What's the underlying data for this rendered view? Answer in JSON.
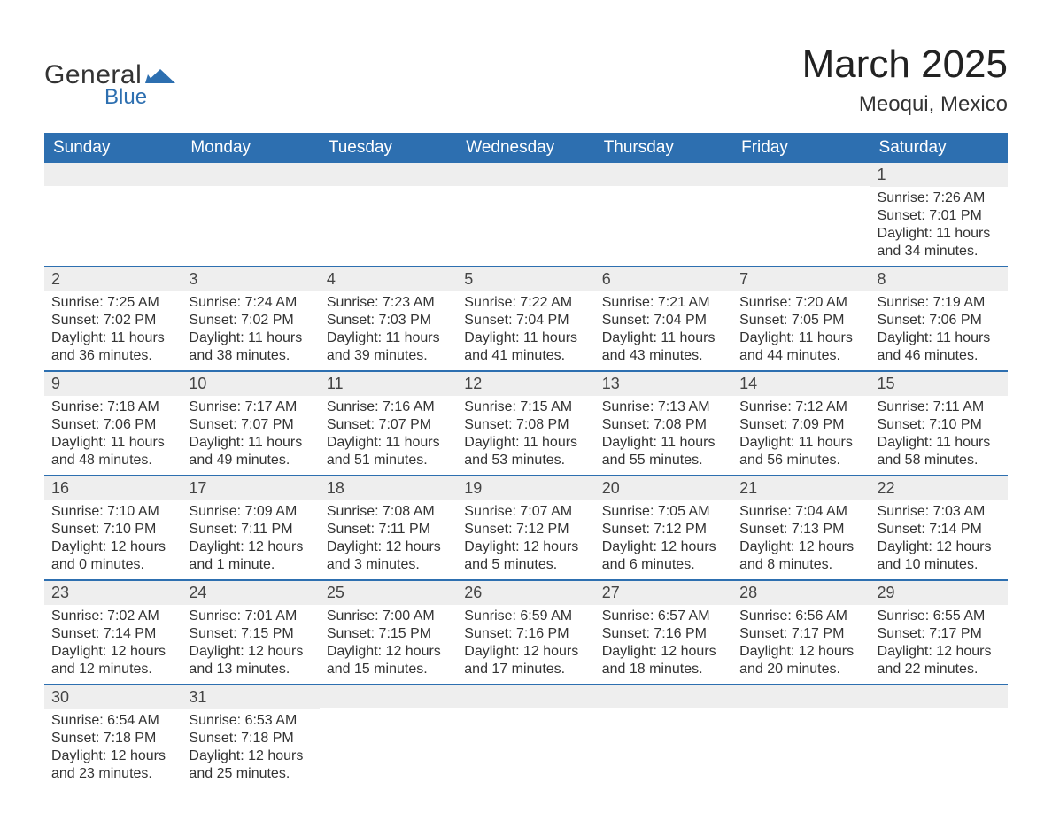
{
  "brand": {
    "text1": "General",
    "text2": "Blue",
    "text1_color": "#333333",
    "text2_color": "#2d6fb0",
    "mark_color": "#2d6fb0"
  },
  "title": "March 2025",
  "location": "Meoqui, Mexico",
  "colors": {
    "header_bg": "#2d6fb0",
    "header_text": "#ffffff",
    "row_border": "#2d6fb0",
    "daynum_bg": "#eeeeee",
    "body_text": "#333333",
    "background": "#ffffff"
  },
  "typography": {
    "title_fontsize": 44,
    "location_fontsize": 24,
    "th_fontsize": 19,
    "daynum_fontsize": 18,
    "body_fontsize": 16
  },
  "weekdays": [
    "Sunday",
    "Monday",
    "Tuesday",
    "Wednesday",
    "Thursday",
    "Friday",
    "Saturday"
  ],
  "weeks": [
    [
      null,
      null,
      null,
      null,
      null,
      null,
      {
        "n": "1",
        "sunrise": "Sunrise: 7:26 AM",
        "sunset": "Sunset: 7:01 PM",
        "daylight": "Daylight: 11 hours and 34 minutes."
      }
    ],
    [
      {
        "n": "2",
        "sunrise": "Sunrise: 7:25 AM",
        "sunset": "Sunset: 7:02 PM",
        "daylight": "Daylight: 11 hours and 36 minutes."
      },
      {
        "n": "3",
        "sunrise": "Sunrise: 7:24 AM",
        "sunset": "Sunset: 7:02 PM",
        "daylight": "Daylight: 11 hours and 38 minutes."
      },
      {
        "n": "4",
        "sunrise": "Sunrise: 7:23 AM",
        "sunset": "Sunset: 7:03 PM",
        "daylight": "Daylight: 11 hours and 39 minutes."
      },
      {
        "n": "5",
        "sunrise": "Sunrise: 7:22 AM",
        "sunset": "Sunset: 7:04 PM",
        "daylight": "Daylight: 11 hours and 41 minutes."
      },
      {
        "n": "6",
        "sunrise": "Sunrise: 7:21 AM",
        "sunset": "Sunset: 7:04 PM",
        "daylight": "Daylight: 11 hours and 43 minutes."
      },
      {
        "n": "7",
        "sunrise": "Sunrise: 7:20 AM",
        "sunset": "Sunset: 7:05 PM",
        "daylight": "Daylight: 11 hours and 44 minutes."
      },
      {
        "n": "8",
        "sunrise": "Sunrise: 7:19 AM",
        "sunset": "Sunset: 7:06 PM",
        "daylight": "Daylight: 11 hours and 46 minutes."
      }
    ],
    [
      {
        "n": "9",
        "sunrise": "Sunrise: 7:18 AM",
        "sunset": "Sunset: 7:06 PM",
        "daylight": "Daylight: 11 hours and 48 minutes."
      },
      {
        "n": "10",
        "sunrise": "Sunrise: 7:17 AM",
        "sunset": "Sunset: 7:07 PM",
        "daylight": "Daylight: 11 hours and 49 minutes."
      },
      {
        "n": "11",
        "sunrise": "Sunrise: 7:16 AM",
        "sunset": "Sunset: 7:07 PM",
        "daylight": "Daylight: 11 hours and 51 minutes."
      },
      {
        "n": "12",
        "sunrise": "Sunrise: 7:15 AM",
        "sunset": "Sunset: 7:08 PM",
        "daylight": "Daylight: 11 hours and 53 minutes."
      },
      {
        "n": "13",
        "sunrise": "Sunrise: 7:13 AM",
        "sunset": "Sunset: 7:08 PM",
        "daylight": "Daylight: 11 hours and 55 minutes."
      },
      {
        "n": "14",
        "sunrise": "Sunrise: 7:12 AM",
        "sunset": "Sunset: 7:09 PM",
        "daylight": "Daylight: 11 hours and 56 minutes."
      },
      {
        "n": "15",
        "sunrise": "Sunrise: 7:11 AM",
        "sunset": "Sunset: 7:10 PM",
        "daylight": "Daylight: 11 hours and 58 minutes."
      }
    ],
    [
      {
        "n": "16",
        "sunrise": "Sunrise: 7:10 AM",
        "sunset": "Sunset: 7:10 PM",
        "daylight": "Daylight: 12 hours and 0 minutes."
      },
      {
        "n": "17",
        "sunrise": "Sunrise: 7:09 AM",
        "sunset": "Sunset: 7:11 PM",
        "daylight": "Daylight: 12 hours and 1 minute."
      },
      {
        "n": "18",
        "sunrise": "Sunrise: 7:08 AM",
        "sunset": "Sunset: 7:11 PM",
        "daylight": "Daylight: 12 hours and 3 minutes."
      },
      {
        "n": "19",
        "sunrise": "Sunrise: 7:07 AM",
        "sunset": "Sunset: 7:12 PM",
        "daylight": "Daylight: 12 hours and 5 minutes."
      },
      {
        "n": "20",
        "sunrise": "Sunrise: 7:05 AM",
        "sunset": "Sunset: 7:12 PM",
        "daylight": "Daylight: 12 hours and 6 minutes."
      },
      {
        "n": "21",
        "sunrise": "Sunrise: 7:04 AM",
        "sunset": "Sunset: 7:13 PM",
        "daylight": "Daylight: 12 hours and 8 minutes."
      },
      {
        "n": "22",
        "sunrise": "Sunrise: 7:03 AM",
        "sunset": "Sunset: 7:14 PM",
        "daylight": "Daylight: 12 hours and 10 minutes."
      }
    ],
    [
      {
        "n": "23",
        "sunrise": "Sunrise: 7:02 AM",
        "sunset": "Sunset: 7:14 PM",
        "daylight": "Daylight: 12 hours and 12 minutes."
      },
      {
        "n": "24",
        "sunrise": "Sunrise: 7:01 AM",
        "sunset": "Sunset: 7:15 PM",
        "daylight": "Daylight: 12 hours and 13 minutes."
      },
      {
        "n": "25",
        "sunrise": "Sunrise: 7:00 AM",
        "sunset": "Sunset: 7:15 PM",
        "daylight": "Daylight: 12 hours and 15 minutes."
      },
      {
        "n": "26",
        "sunrise": "Sunrise: 6:59 AM",
        "sunset": "Sunset: 7:16 PM",
        "daylight": "Daylight: 12 hours and 17 minutes."
      },
      {
        "n": "27",
        "sunrise": "Sunrise: 6:57 AM",
        "sunset": "Sunset: 7:16 PM",
        "daylight": "Daylight: 12 hours and 18 minutes."
      },
      {
        "n": "28",
        "sunrise": "Sunrise: 6:56 AM",
        "sunset": "Sunset: 7:17 PM",
        "daylight": "Daylight: 12 hours and 20 minutes."
      },
      {
        "n": "29",
        "sunrise": "Sunrise: 6:55 AM",
        "sunset": "Sunset: 7:17 PM",
        "daylight": "Daylight: 12 hours and 22 minutes."
      }
    ],
    [
      {
        "n": "30",
        "sunrise": "Sunrise: 6:54 AM",
        "sunset": "Sunset: 7:18 PM",
        "daylight": "Daylight: 12 hours and 23 minutes."
      },
      {
        "n": "31",
        "sunrise": "Sunrise: 6:53 AM",
        "sunset": "Sunset: 7:18 PM",
        "daylight": "Daylight: 12 hours and 25 minutes."
      },
      null,
      null,
      null,
      null,
      null
    ]
  ]
}
